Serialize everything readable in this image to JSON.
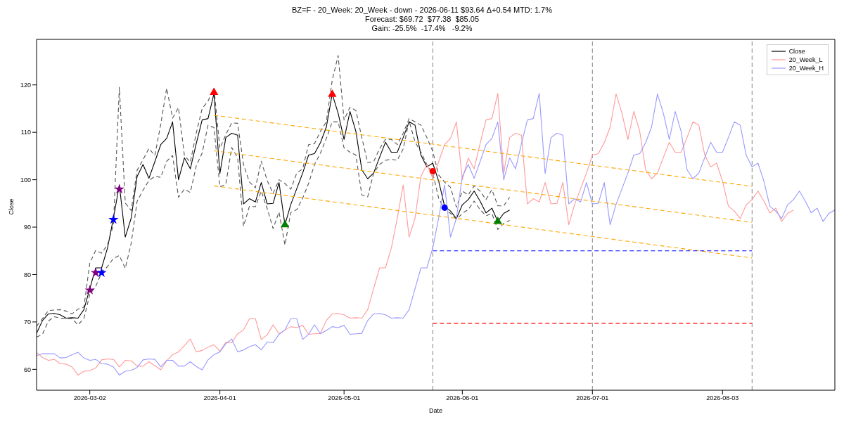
{
  "chart_data": {
    "type": "line",
    "title": "BZ=F - 20_Week: 20_Week - down - 2026-06-11 $93.64 Δ+0.54 MTD: 1.7%",
    "subtitle": "Forecast: $69.72  $77.38  $85.05\nGain: -25.5%  -17.4%   -9.2%",
    "xlabel": "Date",
    "ylabel": "Close",
    "categories": [
      null,
      null,
      null,
      null,
      null,
      null,
      null,
      null,
      null,
      "2026-03-02",
      null,
      null,
      null,
      null,
      null,
      null,
      null,
      null,
      null,
      null,
      null,
      null,
      null,
      null,
      null,
      null,
      null,
      null,
      null,
      null,
      null,
      "2026-04-01",
      null,
      null,
      null,
      null,
      null,
      null,
      null,
      null,
      null,
      null,
      null,
      null,
      null,
      null,
      null,
      null,
      null,
      null,
      null,
      null,
      "2026-05-01",
      null,
      null,
      null,
      null,
      null,
      null,
      null,
      null,
      null,
      null,
      null,
      null,
      null,
      null,
      null,
      null,
      null,
      null,
      null,
      "2026-06-01",
      null,
      null,
      null,
      null,
      null,
      null,
      null,
      null,
      null,
      null,
      null,
      null,
      null,
      null,
      null,
      null,
      null,
      null,
      null,
      null,
      null,
      "2026-07-01",
      null,
      null,
      null,
      null,
      null,
      null,
      null,
      null,
      null,
      null,
      null,
      null,
      null,
      null,
      null,
      null,
      null,
      null,
      null,
      null,
      null,
      "2026-08-03",
      null,
      null,
      null,
      null,
      null,
      null,
      null,
      null,
      null,
      null,
      null,
      null,
      null,
      null,
      null,
      null,
      null,
      null,
      null
    ],
    "ylim": [
      55.6,
      129.6
    ],
    "yticks": [
      60,
      70,
      80,
      90,
      100,
      110,
      120
    ],
    "legend": "top right",
    "series": [
      {
        "name": "Close",
        "color": "#000000",
        "values": [
          67.6,
          70.3,
          71.7,
          71.8,
          71.5,
          70.8,
          70.9,
          70.8,
          72.6,
          77.0,
          81.4,
          81.4,
          85.6,
          91.9,
          98.9,
          87.9,
          91.9,
          100.7,
          103.2,
          100.3,
          103.8,
          107.4,
          108.7,
          112.2,
          100.0,
          104.6,
          102.3,
          107.6,
          112.6,
          112.9,
          118.2,
          101.3,
          108.9,
          109.8,
          109.4,
          94.9,
          96.0,
          95.3,
          99.4,
          94.9,
          95.0,
          99.4,
          90.5,
          94.8,
          98.1,
          101.4,
          105.2,
          105.5,
          107.8,
          111.1,
          118.1,
          114.0,
          108.5,
          114.4,
          110.2,
          102.1,
          100.2,
          101.4,
          104.7,
          107.9,
          105.8,
          105.8,
          108.9,
          112.2,
          111.5,
          105.2,
          102.7,
          103.5,
          99.7,
          94.4,
          93.4,
          91.8,
          94.7,
          95.8,
          97.6,
          95.5,
          93.0,
          94.0,
          91.2,
          92.9,
          93.6,
          null,
          null,
          null,
          null,
          null,
          null,
          null,
          null,
          null,
          null,
          null,
          null,
          null,
          null,
          null,
          null,
          null,
          null,
          null,
          null,
          null,
          null,
          null,
          null,
          null,
          null,
          null,
          null,
          null,
          null,
          null,
          null,
          null,
          null,
          null,
          null,
          null,
          null,
          null,
          null,
          null,
          null,
          null,
          null,
          null,
          null,
          null,
          null,
          null,
          null,
          null,
          null,
          null,
          null,
          null
        ]
      },
      {
        "color": "#555555",
        "line_style": "dashed",
        "values": [
          69.1,
          70.7,
          72.4,
          72.5,
          72.6,
          72.3,
          71.7,
          72.7,
          73.1,
          82.4,
          85.1,
          84.5,
          86.3,
          90.5,
          119.5,
          95.1,
          93.5,
          102.0,
          104.2,
          106.6,
          105.1,
          111.7,
          119.3,
          113.0,
          115.2,
          105.1,
          103.7,
          109.8,
          115.0,
          116.6,
          119.3,
          106.6,
          109.5,
          112.0,
          111.9,
          103.2,
          99.5,
          98.3,
          103.9,
          99.8,
          97.1,
          100.0,
          99.2,
          98.0,
          101.4,
          102.3,
          107.4,
          107.6,
          110.2,
          112.2,
          121.0,
          126.2,
          112.6,
          115.3,
          114.6,
          108.9,
          103.6,
          103.8,
          106.5,
          108.5,
          108.5,
          107.4,
          109.8,
          112.9,
          112.2,
          111.5,
          108.9,
          106.0,
          101.0,
          99.5,
          98.4,
          94.2,
          97.6,
          96.8,
          98.7,
          97.6,
          95.8,
          97.9,
          94.5,
          94.5,
          96.3,
          null,
          null,
          null,
          null,
          null,
          null,
          null,
          null,
          null,
          null,
          null,
          null,
          null,
          null,
          null,
          null,
          null,
          null,
          null,
          null,
          null,
          null,
          null,
          null,
          null,
          null,
          null,
          null,
          null,
          null,
          null,
          null,
          null,
          null,
          null,
          null,
          null,
          null,
          null,
          null,
          null,
          null,
          null,
          null,
          null,
          null,
          null,
          null,
          null,
          null,
          null,
          null,
          null,
          null,
          null
        ]
      },
      {
        "color": "#555555",
        "line_style": "dashed",
        "values": [
          66.8,
          67.4,
          70.2,
          71.1,
          70.8,
          70.7,
          70.7,
          69.4,
          70.7,
          75.8,
          77.5,
          80.4,
          81.7,
          83.4,
          84.0,
          81.3,
          86.6,
          95.4,
          97.8,
          99.8,
          100.7,
          100.5,
          103.9,
          105.1,
          96.3,
          98.0,
          97.3,
          102.9,
          105.6,
          111.5,
          111.0,
          98.5,
          99.0,
          106.8,
          104.6,
          90.2,
          94.4,
          94.3,
          97.6,
          93.9,
          89.7,
          93.2,
          86.2,
          93.1,
          93.7,
          96.1,
          99.2,
          103.2,
          105.6,
          108.7,
          112.2,
          112.2,
          106.7,
          105.8,
          105.2,
          96.8,
          96.4,
          101.4,
          103.2,
          104.1,
          104.3,
          104.1,
          106.5,
          112.4,
          108.0,
          105.8,
          103.2,
          101.4,
          96.1,
          93.7,
          92.9,
          91.6,
          92.9,
          93.7,
          95.5,
          93.7,
          92.4,
          92.9,
          89.5,
          90.8,
          91.4,
          null,
          null,
          null,
          null,
          null,
          null,
          null,
          null,
          null,
          null,
          null,
          null,
          null,
          null,
          null,
          null,
          null,
          null,
          null,
          null,
          null,
          null,
          null,
          null,
          null,
          null,
          null,
          null,
          null,
          null,
          null,
          null,
          null,
          null,
          null,
          null,
          null,
          null,
          null,
          null,
          null,
          null,
          null,
          null,
          null,
          null,
          null,
          null,
          null,
          null,
          null,
          null,
          null,
          null,
          null
        ]
      },
      {
        "name": "20_Week_L",
        "color": "#ff9999",
        "values": [
          63.6,
          62.5,
          61.9,
          62.1,
          61.2,
          61.1,
          60.5,
          58.8,
          59.6,
          59.7,
          60.3,
          62.0,
          62.2,
          62.1,
          60.5,
          61.9,
          61.8,
          60.7,
          60.7,
          61.6,
          60.8,
          59.9,
          61.8,
          63.1,
          63.7,
          65.0,
          66.4,
          63.7,
          64.0,
          64.7,
          65.2,
          63.8,
          65.7,
          65.6,
          67.5,
          68.3,
          70.7,
          70.7,
          66.3,
          67.3,
          69.4,
          67.5,
          68.3,
          69.0,
          68.8,
          69.3,
          67.4,
          67.5,
          67.6,
          70.3,
          71.7,
          71.8,
          71.5,
          70.8,
          70.9,
          70.8,
          72.6,
          77.0,
          81.4,
          81.4,
          85.6,
          91.9,
          98.9,
          87.9,
          91.9,
          100.7,
          103.2,
          100.3,
          103.8,
          107.4,
          108.7,
          112.2,
          100.0,
          104.6,
          102.3,
          107.6,
          112.6,
          112.9,
          118.2,
          101.3,
          108.9,
          109.8,
          109.4,
          94.9,
          96.0,
          95.3,
          99.4,
          94.9,
          95.0,
          99.4,
          90.5,
          94.8,
          98.1,
          101.4,
          105.2,
          105.5,
          107.8,
          111.1,
          118.1,
          114.0,
          108.5,
          114.4,
          110.2,
          102.1,
          100.2,
          101.4,
          104.7,
          107.9,
          105.8,
          105.8,
          108.9,
          112.2,
          111.5,
          105.2,
          102.7,
          103.5,
          99.7,
          94.4,
          93.4,
          91.8,
          94.7,
          95.8,
          97.6,
          95.5,
          93.0,
          94.0,
          91.2,
          92.9,
          93.6,
          null,
          null,
          null,
          null,
          null,
          null,
          null
        ]
      },
      {
        "name": "20_Week_H",
        "color": "#9999ff",
        "values": [
          62.9,
          63.3,
          63.3,
          63.3,
          62.4,
          62.5,
          63.1,
          63.6,
          62.4,
          61.9,
          62.1,
          61.2,
          61.1,
          60.5,
          58.8,
          59.6,
          59.8,
          60.4,
          62.0,
          62.2,
          62.1,
          60.5,
          61.9,
          61.9,
          60.7,
          60.7,
          61.6,
          60.6,
          59.9,
          62.0,
          63.1,
          63.7,
          65.4,
          66.4,
          63.7,
          64.1,
          64.8,
          65.2,
          64.1,
          65.8,
          65.6,
          67.4,
          68.3,
          70.7,
          70.7,
          66.3,
          67.4,
          69.4,
          67.5,
          68.2,
          69.0,
          68.8,
          69.3,
          67.4,
          67.5,
          67.6,
          70.3,
          71.7,
          71.8,
          71.5,
          70.8,
          70.9,
          70.8,
          72.6,
          77.0,
          81.4,
          81.4,
          85.6,
          91.9,
          98.9,
          87.9,
          91.9,
          100.7,
          103.2,
          100.3,
          103.8,
          107.4,
          108.7,
          112.2,
          100.0,
          104.6,
          102.3,
          107.6,
          112.6,
          112.9,
          118.2,
          101.3,
          108.9,
          109.8,
          109.4,
          94.9,
          96.0,
          95.3,
          99.4,
          94.9,
          95.0,
          99.4,
          90.5,
          94.8,
          98.1,
          101.4,
          105.2,
          105.5,
          107.8,
          111.1,
          118.1,
          114.0,
          108.5,
          114.4,
          110.2,
          102.1,
          100.2,
          101.4,
          104.7,
          107.9,
          105.8,
          105.8,
          108.9,
          112.2,
          111.5,
          105.2,
          102.7,
          103.5,
          99.7,
          94.4,
          93.4,
          91.8,
          94.7,
          95.8,
          97.6,
          95.5,
          93.0,
          94.0,
          91.2,
          92.9,
          93.6
        ]
      },
      {
        "color": "#ffa500",
        "line_style": "dashed",
        "values": [
          null,
          null,
          null,
          null,
          null,
          null,
          null,
          null,
          null,
          null,
          null,
          null,
          null,
          null,
          null,
          null,
          null,
          null,
          null,
          null,
          null,
          null,
          null,
          null,
          null,
          null,
          null,
          null,
          null,
          null,
          113.6,
          null,
          null,
          null,
          null,
          null,
          null,
          null,
          null,
          null,
          null,
          null,
          null,
          null,
          null,
          null,
          null,
          null,
          null,
          null,
          null,
          null,
          null,
          null,
          null,
          null,
          null,
          null,
          null,
          null,
          null,
          null,
          null,
          null,
          null,
          null,
          null,
          null,
          null,
          null,
          null,
          null,
          null,
          null,
          null,
          null,
          null,
          null,
          null,
          null,
          null,
          null,
          null,
          null,
          null,
          null,
          null,
          null,
          null,
          null,
          null,
          null,
          null,
          null,
          null,
          null,
          null,
          null,
          null,
          null,
          null,
          null,
          null,
          null,
          null,
          null,
          null,
          null,
          null,
          null,
          null,
          null,
          null,
          null,
          null,
          null,
          null,
          null,
          null,
          null,
          null,
          98.6,
          null,
          null,
          null,
          null,
          null,
          null,
          null,
          null,
          null,
          null,
          null,
          null,
          null,
          null
        ]
      },
      {
        "color": "#ffa500",
        "line_style": "dashed",
        "values": [
          null,
          null,
          null,
          null,
          null,
          null,
          null,
          null,
          null,
          null,
          null,
          null,
          null,
          null,
          null,
          null,
          null,
          null,
          null,
          null,
          null,
          null,
          null,
          null,
          null,
          null,
          null,
          null,
          null,
          null,
          106.1,
          null,
          null,
          null,
          null,
          null,
          null,
          null,
          null,
          null,
          null,
          null,
          null,
          null,
          null,
          null,
          null,
          null,
          null,
          null,
          null,
          null,
          null,
          null,
          null,
          null,
          null,
          null,
          null,
          null,
          null,
          null,
          null,
          null,
          null,
          null,
          null,
          null,
          null,
          null,
          null,
          null,
          null,
          null,
          null,
          null,
          null,
          null,
          null,
          null,
          null,
          null,
          null,
          null,
          null,
          null,
          null,
          null,
          null,
          null,
          null,
          null,
          null,
          null,
          null,
          null,
          null,
          null,
          null,
          null,
          null,
          null,
          null,
          null,
          null,
          null,
          null,
          null,
          null,
          null,
          null,
          null,
          null,
          null,
          null,
          null,
          null,
          null,
          null,
          null,
          null,
          91.0,
          null,
          null,
          null,
          null,
          null,
          null,
          null,
          null,
          null,
          null,
          null,
          null,
          null,
          null
        ]
      },
      {
        "color": "#ffa500",
        "line_style": "dashed",
        "values": [
          null,
          null,
          null,
          null,
          null,
          null,
          null,
          null,
          null,
          null,
          null,
          null,
          null,
          null,
          null,
          null,
          null,
          null,
          null,
          null,
          null,
          null,
          null,
          null,
          null,
          null,
          null,
          null,
          null,
          null,
          98.7,
          null,
          null,
          null,
          null,
          null,
          null,
          null,
          null,
          null,
          null,
          null,
          null,
          null,
          null,
          null,
          null,
          null,
          null,
          null,
          null,
          null,
          null,
          null,
          null,
          null,
          null,
          null,
          null,
          null,
          null,
          null,
          null,
          null,
          null,
          null,
          null,
          null,
          null,
          null,
          null,
          null,
          null,
          null,
          null,
          null,
          null,
          null,
          null,
          null,
          null,
          null,
          null,
          null,
          null,
          null,
          null,
          null,
          null,
          null,
          null,
          null,
          null,
          null,
          null,
          null,
          null,
          null,
          null,
          null,
          null,
          null,
          null,
          null,
          null,
          null,
          null,
          null,
          null,
          null,
          null,
          null,
          null,
          null,
          null,
          null,
          null,
          null,
          null,
          null,
          null,
          83.5,
          null,
          null,
          null,
          null,
          null,
          null,
          null,
          null,
          null,
          null,
          null,
          null,
          null,
          null
        ]
      },
      {
        "color": "#0000ff",
        "line_style": "dashed",
        "values": [
          null,
          null,
          null,
          null,
          null,
          null,
          null,
          null,
          null,
          null,
          null,
          null,
          null,
          null,
          null,
          null,
          null,
          null,
          null,
          null,
          null,
          null,
          null,
          null,
          null,
          null,
          null,
          null,
          null,
          null,
          null,
          null,
          null,
          null,
          null,
          null,
          null,
          null,
          null,
          null,
          null,
          null,
          null,
          null,
          null,
          null,
          null,
          null,
          null,
          null,
          null,
          null,
          null,
          null,
          null,
          null,
          null,
          null,
          null,
          null,
          null,
          null,
          null,
          null,
          null,
          null,
          null,
          85.0,
          null,
          null,
          null,
          null,
          null,
          null,
          null,
          null,
          null,
          null,
          null,
          null,
          null,
          null,
          null,
          null,
          null,
          null,
          null,
          null,
          null,
          null,
          null,
          null,
          null,
          null,
          null,
          null,
          null,
          null,
          null,
          null,
          null,
          null,
          null,
          null,
          null,
          null,
          null,
          null,
          null,
          null,
          null,
          null,
          null,
          null,
          null,
          null,
          null,
          null,
          null,
          null,
          null,
          85.0,
          null,
          null,
          null,
          null,
          null,
          null,
          null,
          null,
          null,
          null,
          null,
          null,
          null,
          null
        ]
      },
      {
        "color": "#ff0000",
        "line_style": "dashed",
        "values": [
          null,
          null,
          null,
          null,
          null,
          null,
          null,
          null,
          null,
          null,
          null,
          null,
          null,
          null,
          null,
          null,
          null,
          null,
          null,
          null,
          null,
          null,
          null,
          null,
          null,
          null,
          null,
          null,
          null,
          null,
          null,
          null,
          null,
          null,
          null,
          null,
          null,
          null,
          null,
          null,
          null,
          null,
          null,
          null,
          null,
          null,
          null,
          null,
          null,
          null,
          null,
          null,
          null,
          null,
          null,
          null,
          null,
          null,
          null,
          null,
          null,
          null,
          null,
          null,
          null,
          null,
          null,
          69.7,
          null,
          null,
          null,
          null,
          null,
          null,
          null,
          null,
          null,
          null,
          null,
          null,
          null,
          null,
          null,
          null,
          null,
          null,
          null,
          null,
          null,
          null,
          null,
          null,
          null,
          null,
          null,
          null,
          null,
          null,
          null,
          null,
          null,
          null,
          null,
          null,
          null,
          null,
          null,
          null,
          null,
          null,
          null,
          null,
          null,
          null,
          null,
          null,
          null,
          null,
          null,
          null,
          null,
          69.7,
          null,
          null,
          null,
          null,
          null,
          null,
          null,
          null,
          null,
          null,
          null,
          null,
          null,
          null
        ]
      },
      {
        "type": "scatter",
        "marker": "star",
        "color": "#800080",
        "values": [
          null,
          null,
          null,
          null,
          null,
          null,
          null,
          null,
          null,
          76.7,
          80.4,
          null,
          null,
          null,
          98.0,
          null,
          null,
          null,
          null,
          null,
          null,
          null,
          null,
          null,
          null,
          null,
          null,
          null,
          null,
          null,
          null,
          null,
          null,
          null,
          null,
          null,
          null,
          null,
          null,
          null,
          null,
          null,
          null,
          null,
          null,
          null,
          null,
          null,
          null,
          null,
          null,
          null,
          null,
          null,
          null,
          null,
          null,
          null,
          null,
          null,
          null,
          null,
          null,
          null,
          null,
          null,
          null,
          null,
          null,
          null,
          null,
          null,
          null,
          null,
          null,
          null,
          null,
          null,
          null,
          null,
          null,
          null,
          null,
          null,
          null,
          null,
          null,
          null,
          null,
          null,
          null,
          null,
          null,
          null,
          null,
          null,
          null,
          null,
          null,
          null,
          null,
          null,
          null,
          null,
          null,
          null,
          null,
          null,
          null,
          null,
          null,
          null,
          null,
          null,
          null,
          null,
          null,
          null,
          null,
          null,
          null,
          null,
          null,
          null,
          null,
          null,
          null,
          null,
          null,
          null,
          null,
          null,
          null,
          null,
          null,
          null
        ]
      },
      {
        "type": "scatter",
        "marker": "star",
        "color": "#0000ff",
        "values": [
          null,
          null,
          null,
          null,
          null,
          null,
          null,
          null,
          null,
          null,
          null,
          80.4,
          null,
          91.6,
          null,
          null,
          null,
          null,
          null,
          null,
          null,
          null,
          null,
          null,
          null,
          null,
          null,
          null,
          null,
          null,
          null,
          null,
          null,
          null,
          null,
          null,
          null,
          null,
          null,
          null,
          null,
          null,
          null,
          null,
          null,
          null,
          null,
          null,
          null,
          null,
          null,
          null,
          null,
          null,
          null,
          null,
          null,
          null,
          null,
          null,
          null,
          null,
          null,
          null,
          null,
          null,
          null,
          null,
          null,
          null,
          null,
          null,
          null,
          null,
          null,
          null,
          null,
          null,
          null,
          null,
          null,
          null,
          null,
          null,
          null,
          null,
          null,
          null,
          null,
          null,
          null,
          null,
          null,
          null,
          null,
          null,
          null,
          null,
          null,
          null,
          null,
          null,
          null,
          null,
          null,
          null,
          null,
          null,
          null,
          null,
          null,
          null,
          null,
          null,
          null,
          null,
          null,
          null,
          null,
          null,
          null,
          null,
          null,
          null,
          null,
          null,
          null,
          null,
          null,
          null,
          null,
          null,
          null,
          null,
          null,
          null
        ]
      },
      {
        "type": "scatter",
        "marker": "triangle",
        "color": "#ff0000",
        "values": [
          null,
          null,
          null,
          null,
          null,
          null,
          null,
          null,
          null,
          null,
          null,
          null,
          null,
          null,
          null,
          null,
          null,
          null,
          null,
          null,
          null,
          null,
          null,
          null,
          null,
          null,
          null,
          null,
          null,
          null,
          118.4,
          null,
          null,
          null,
          null,
          null,
          null,
          null,
          null,
          null,
          null,
          null,
          null,
          null,
          null,
          null,
          null,
          null,
          null,
          null,
          118.0,
          null,
          null,
          null,
          null,
          null,
          null,
          null,
          null,
          null,
          null,
          null,
          null,
          null,
          null,
          null,
          null,
          null,
          null,
          null,
          null,
          null,
          null,
          null,
          null,
          null,
          null,
          null,
          null,
          null,
          null,
          null,
          null,
          null,
          null,
          null,
          null,
          null,
          null,
          null,
          null,
          null,
          null,
          null,
          null,
          null,
          null,
          null,
          null,
          null,
          null,
          null,
          null,
          null,
          null,
          null,
          null,
          null,
          null,
          null,
          null,
          null,
          null,
          null,
          null,
          null,
          null,
          null,
          null,
          null,
          null,
          null,
          null,
          null,
          null,
          null,
          null,
          null,
          null,
          null,
          null,
          null,
          null,
          null,
          null,
          null
        ]
      },
      {
        "type": "scatter",
        "marker": "triangle",
        "color": "#008000",
        "values": [
          null,
          null,
          null,
          null,
          null,
          null,
          null,
          null,
          null,
          null,
          null,
          null,
          null,
          null,
          null,
          null,
          null,
          null,
          null,
          null,
          null,
          null,
          null,
          null,
          null,
          null,
          null,
          null,
          null,
          null,
          null,
          null,
          null,
          null,
          null,
          null,
          null,
          null,
          null,
          null,
          null,
          null,
          90.5,
          null,
          null,
          null,
          null,
          null,
          null,
          null,
          null,
          null,
          null,
          null,
          null,
          null,
          null,
          null,
          null,
          null,
          null,
          null,
          null,
          null,
          null,
          null,
          null,
          null,
          null,
          null,
          null,
          null,
          null,
          null,
          null,
          null,
          null,
          null,
          91.2,
          null,
          null,
          null,
          null,
          null,
          null,
          null,
          null,
          null,
          null,
          null,
          null,
          null,
          null,
          null,
          null,
          null,
          null,
          null,
          null,
          null,
          null,
          null,
          null,
          null,
          null,
          null,
          null,
          null,
          null,
          null,
          null,
          null,
          null,
          null,
          null,
          null,
          null,
          null,
          null,
          null,
          null,
          null,
          null,
          null,
          null,
          null,
          null,
          null,
          null,
          null,
          null,
          null,
          null,
          null,
          null,
          null
        ]
      },
      {
        "type": "scatter",
        "marker": "circle",
        "color": "#ff0000",
        "values": [
          null,
          null,
          null,
          null,
          null,
          null,
          null,
          null,
          null,
          null,
          null,
          null,
          null,
          null,
          null,
          null,
          null,
          null,
          null,
          null,
          null,
          null,
          null,
          null,
          null,
          null,
          null,
          null,
          null,
          null,
          null,
          null,
          null,
          null,
          null,
          null,
          null,
          null,
          null,
          null,
          null,
          null,
          null,
          null,
          null,
          null,
          null,
          null,
          null,
          null,
          null,
          null,
          null,
          null,
          null,
          null,
          null,
          null,
          null,
          null,
          null,
          null,
          null,
          null,
          null,
          null,
          null,
          101.8,
          null,
          null,
          null,
          null,
          null,
          null,
          null,
          null,
          null,
          null,
          null,
          null,
          null,
          null,
          null,
          null,
          null,
          null,
          null,
          null,
          null,
          null,
          null,
          null,
          null,
          null,
          null,
          null,
          null,
          null,
          null,
          null,
          null,
          null,
          null,
          null,
          null,
          null,
          null,
          null,
          null,
          null,
          null,
          null,
          null,
          null,
          null,
          null,
          null,
          null,
          null,
          null,
          null,
          null,
          null,
          null,
          null,
          null,
          null,
          null,
          null,
          null,
          null,
          null,
          null,
          null,
          null,
          null
        ]
      },
      {
        "type": "scatter",
        "marker": "circle",
        "color": "#0000ff",
        "values": [
          null,
          null,
          null,
          null,
          null,
          null,
          null,
          null,
          null,
          null,
          null,
          null,
          null,
          null,
          null,
          null,
          null,
          null,
          null,
          null,
          null,
          null,
          null,
          null,
          null,
          null,
          null,
          null,
          null,
          null,
          null,
          null,
          null,
          null,
          null,
          null,
          null,
          null,
          null,
          null,
          null,
          null,
          null,
          null,
          null,
          null,
          null,
          null,
          null,
          null,
          null,
          null,
          null,
          null,
          null,
          null,
          null,
          null,
          null,
          null,
          null,
          null,
          null,
          null,
          null,
          null,
          null,
          null,
          null,
          94.1,
          null,
          null,
          null,
          null,
          null,
          null,
          null,
          null,
          null,
          null,
          null,
          null,
          null,
          null,
          null,
          null,
          null,
          null,
          null,
          null,
          null,
          null,
          null,
          null,
          null,
          null,
          null,
          null,
          null,
          null,
          null,
          null,
          null,
          null,
          null,
          null,
          null,
          null,
          null,
          null,
          null,
          null,
          null,
          null,
          null,
          null,
          null,
          null,
          null,
          null,
          null,
          null,
          null,
          null,
          null,
          null,
          null,
          null,
          null,
          null,
          null,
          null,
          null,
          null,
          null,
          null
        ]
      }
    ]
  }
}
